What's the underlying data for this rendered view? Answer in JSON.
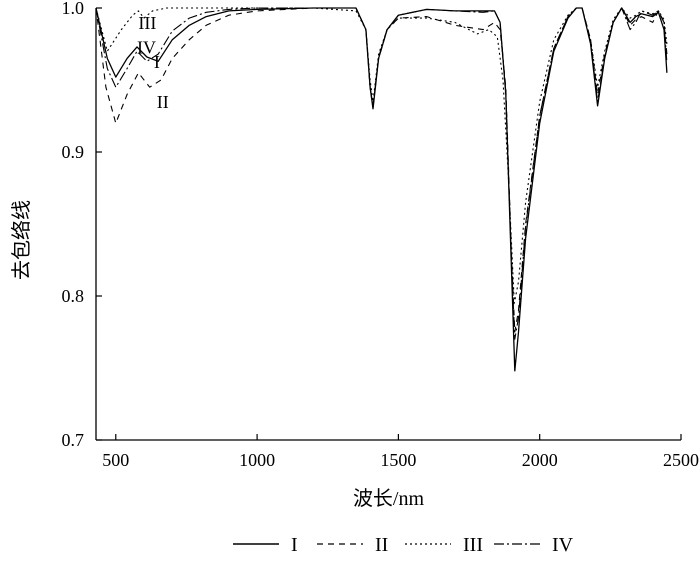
{
  "chart_data": {
    "type": "line",
    "xlabel": "波长/nm",
    "ylabel": "去包络线",
    "xlim": [
      430,
      2500
    ],
    "ylim": [
      0.7,
      1.0
    ],
    "x_ticks": [
      {
        "value": 500,
        "label": "500"
      },
      {
        "value": 1000,
        "label": "1000"
      },
      {
        "value": 1500,
        "label": "1500"
      },
      {
        "value": 2000,
        "label": "2000"
      },
      {
        "value": 2500,
        "label": "2500"
      }
    ],
    "y_ticks": [
      {
        "value": 0.7,
        "label": "0.7"
      },
      {
        "value": 0.8,
        "label": "0.8"
      },
      {
        "value": 0.9,
        "label": "0.9"
      },
      {
        "value": 1.0,
        "label": "1.0"
      }
    ],
    "grid": false,
    "legend": "bottom",
    "series": [
      {
        "name": "I",
        "dash": "solid",
        "x": [
          430,
          470,
          500,
          540,
          575,
          610,
          650,
          700,
          760,
          820,
          900,
          1000,
          1200,
          1350,
          1385,
          1400,
          1410,
          1430,
          1460,
          1500,
          1600,
          1700,
          1800,
          1840,
          1860,
          1880,
          1900,
          1912,
          1925,
          1950,
          2000,
          2050,
          2100,
          2130,
          2150,
          2180,
          2205,
          2230,
          2260,
          2290,
          2320,
          2340,
          2360,
          2400,
          2420,
          2440,
          2450
        ],
        "y": [
          1.0,
          0.965,
          0.952,
          0.965,
          0.973,
          0.966,
          0.963,
          0.978,
          0.988,
          0.994,
          0.998,
          0.999,
          1.0,
          1.0,
          0.985,
          0.945,
          0.93,
          0.965,
          0.985,
          0.995,
          0.999,
          0.998,
          0.998,
          0.998,
          0.99,
          0.94,
          0.82,
          0.748,
          0.775,
          0.84,
          0.92,
          0.97,
          0.993,
          1.0,
          1.0,
          0.975,
          0.932,
          0.965,
          0.99,
          1.0,
          0.99,
          0.994,
          0.996,
          0.994,
          0.997,
          0.985,
          0.955
        ]
      },
      {
        "name": "II",
        "dash": "6,5",
        "x": [
          430,
          465,
          500,
          540,
          580,
          620,
          660,
          700,
          760,
          820,
          900,
          1000,
          1200,
          1350,
          1385,
          1400,
          1410,
          1430,
          1460,
          1500,
          1600,
          1700,
          1800,
          1840,
          1860,
          1880,
          1900,
          1912,
          1925,
          1950,
          2000,
          2050,
          2100,
          2130,
          2150,
          2180,
          2205,
          2230,
          2260,
          2290,
          2320,
          2340,
          2360,
          2400,
          2420,
          2440,
          2450
        ],
        "y": [
          1.0,
          0.945,
          0.92,
          0.94,
          0.955,
          0.945,
          0.95,
          0.965,
          0.978,
          0.988,
          0.995,
          0.998,
          1.0,
          1.0,
          0.985,
          0.945,
          0.932,
          0.965,
          0.985,
          0.993,
          0.994,
          0.988,
          0.985,
          0.99,
          0.985,
          0.945,
          0.83,
          0.775,
          0.79,
          0.85,
          0.925,
          0.972,
          0.994,
          1.0,
          1.0,
          0.978,
          0.94,
          0.968,
          0.99,
          1.0,
          0.988,
          0.992,
          0.994,
          0.99,
          0.998,
          0.99,
          0.968
        ]
      },
      {
        "name": "III",
        "dash": "2,3",
        "x": [
          430,
          470,
          520,
          560,
          580,
          600,
          630,
          680,
          760,
          840,
          900,
          1000,
          1200,
          1350,
          1385,
          1400,
          1410,
          1430,
          1460,
          1500,
          1600,
          1700,
          1780,
          1820,
          1850,
          1870,
          1890,
          1910,
          1925,
          1950,
          2000,
          2050,
          2100,
          2130,
          2150,
          2180,
          2205,
          2230,
          2260,
          2290,
          2320,
          2340,
          2360,
          2400,
          2420,
          2440,
          2450
        ],
        "y": [
          1.0,
          0.97,
          0.985,
          0.995,
          0.998,
          0.993,
          0.998,
          1.0,
          1.0,
          1.0,
          1.0,
          1.0,
          1.0,
          0.998,
          0.985,
          0.95,
          0.935,
          0.968,
          0.985,
          0.993,
          0.993,
          0.99,
          0.982,
          0.985,
          0.98,
          0.95,
          0.88,
          0.795,
          0.81,
          0.865,
          0.935,
          0.978,
          0.995,
          1.0,
          1.0,
          0.978,
          0.945,
          0.97,
          0.992,
          1.0,
          0.993,
          0.995,
          0.998,
          0.996,
          0.998,
          0.992,
          0.975
        ]
      },
      {
        "name": "IV",
        "dash": "10,3,2,3",
        "x": [
          430,
          470,
          500,
          540,
          575,
          610,
          650,
          700,
          760,
          820,
          900,
          1000,
          1200,
          1350,
          1385,
          1400,
          1410,
          1430,
          1460,
          1500,
          1600,
          1700,
          1800,
          1840,
          1860,
          1880,
          1900,
          1912,
          1925,
          1950,
          2000,
          2050,
          2100,
          2130,
          2150,
          2180,
          2205,
          2230,
          2260,
          2290,
          2320,
          2340,
          2360,
          2400,
          2420,
          2440,
          2450
        ],
        "y": [
          1.0,
          0.958,
          0.945,
          0.958,
          0.97,
          0.963,
          0.968,
          0.984,
          0.993,
          0.997,
          0.999,
          1.0,
          1.0,
          1.0,
          0.985,
          0.945,
          0.931,
          0.966,
          0.985,
          0.995,
          0.999,
          0.998,
          0.997,
          0.998,
          0.99,
          0.942,
          0.825,
          0.77,
          0.785,
          0.848,
          0.925,
          0.972,
          0.994,
          1.0,
          1.0,
          0.976,
          0.935,
          0.966,
          0.99,
          1.0,
          0.985,
          0.99,
          0.998,
          0.995,
          0.998,
          0.99,
          0.962
        ]
      }
    ],
    "annotations": [
      {
        "text": "III",
        "x": 580,
        "y": 0.9855
      },
      {
        "text": "IV",
        "x": 575,
        "y": 0.9685
      },
      {
        "text": "I",
        "x": 635,
        "y": 0.9585
      },
      {
        "text": "II",
        "x": 645,
        "y": 0.9305
      }
    ]
  }
}
